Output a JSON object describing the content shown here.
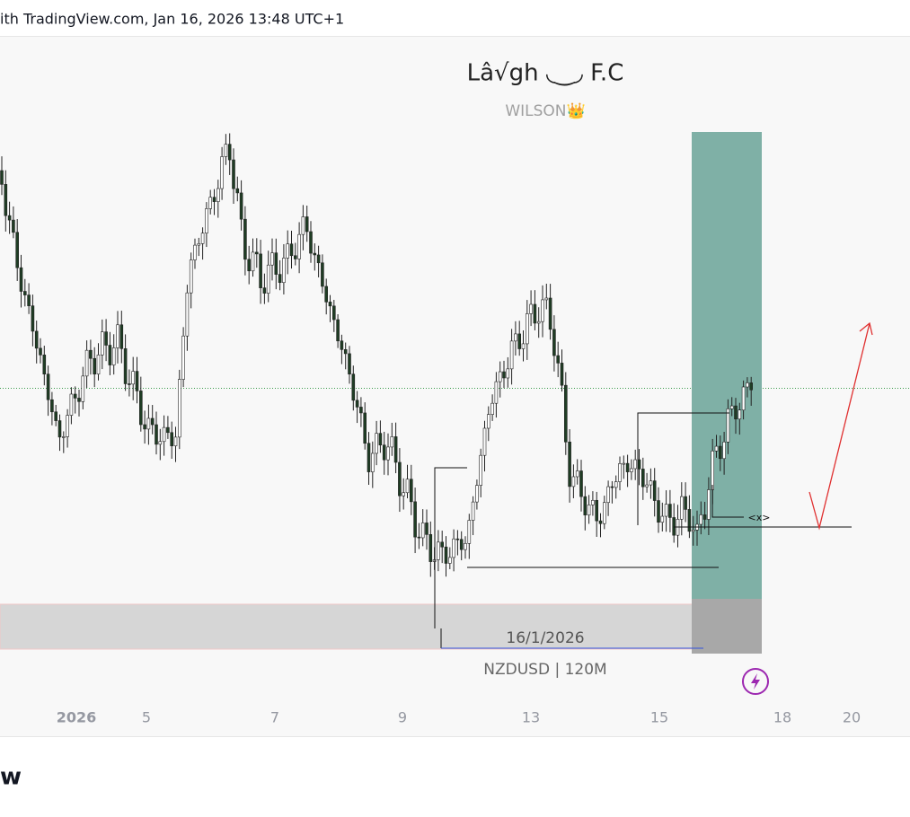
{
  "header": {
    "text": "ith TradingView.com, Jan 16, 2026 13:48 UTC+1"
  },
  "watermark": {
    "title": "Lâ√gh ◟‿◞ F.C",
    "subtitle": "WILSON👑"
  },
  "annotations": {
    "date": "16/1/2026",
    "symbol": "NZDUSD | 120M",
    "marker": "<x>"
  },
  "time_axis": {
    "labels": [
      "2026",
      "5",
      "7",
      "9",
      "13",
      "15",
      "18",
      "20"
    ]
  },
  "footer": {
    "logo": "w"
  }
}
